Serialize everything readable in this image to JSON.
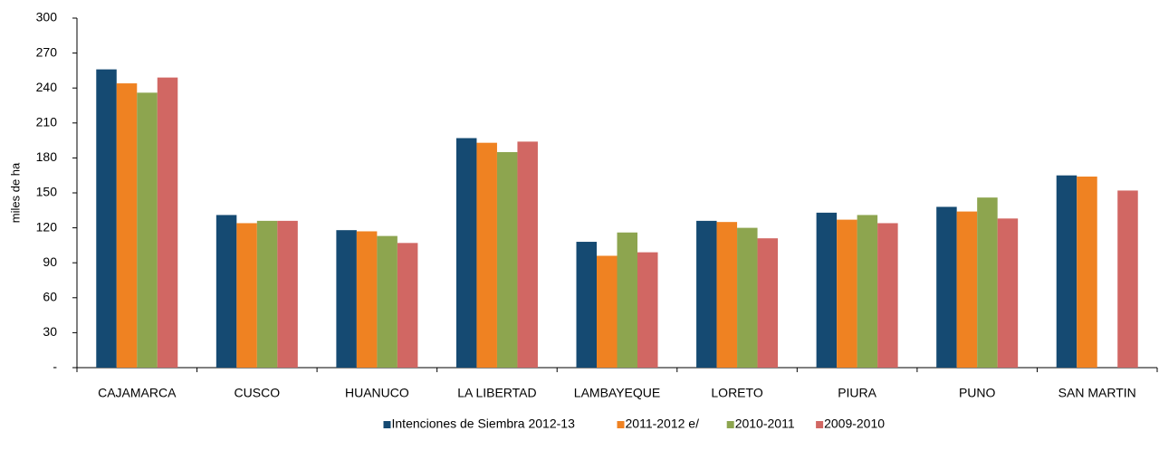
{
  "chart_data": {
    "type": "bar",
    "y_label": "miles de ha",
    "categories": [
      "CAJAMARCA",
      "CUSCO",
      "HUANUCO",
      "LA LIBERTAD",
      "LAMBAYEQUE",
      "LORETO",
      "PIURA",
      "PUNO",
      "SAN MARTIN"
    ],
    "series": [
      {
        "name": "Intenciones de Siembra 2012-13",
        "color": "#154a72",
        "values": [
          256,
          131,
          118,
          197,
          108,
          126,
          133,
          138,
          165
        ]
      },
      {
        "name": "2011-2012 e/",
        "color": "#ef8222",
        "values": [
          244,
          124,
          117,
          193,
          96,
          125,
          127,
          134,
          164
        ]
      },
      {
        "name": "2010-2011",
        "color": "#8da54f",
        "values": [
          236,
          126,
          113,
          185,
          116,
          120,
          131,
          146,
          null
        ]
      },
      {
        "name": "2009-2010",
        "color": "#d16763",
        "values": [
          249,
          126,
          107,
          194,
          99,
          111,
          124,
          128,
          152
        ]
      }
    ],
    "ylim": [
      0,
      300
    ],
    "yticks": [
      {
        "value": 0,
        "label": "-"
      },
      30,
      60,
      90,
      120,
      150,
      180,
      210,
      240,
      270,
      300
    ],
    "grid": false,
    "legend": "bottom"
  }
}
